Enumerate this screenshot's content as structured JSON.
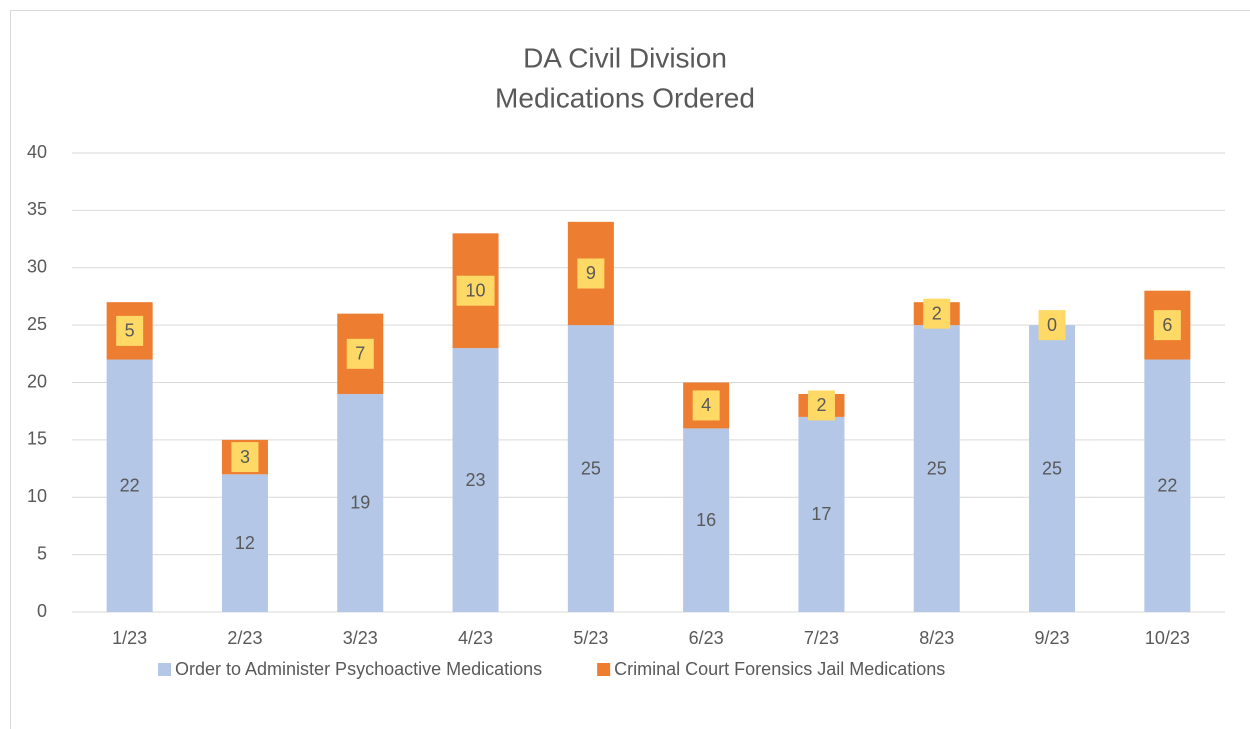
{
  "chart_data": {
    "type": "bar",
    "stacked": true,
    "title": "DA Civil Division",
    "subtitle": "Medications Ordered",
    "categories": [
      "1/23",
      "2/23",
      "3/23",
      "4/23",
      "5/23",
      "6/23",
      "7/23",
      "8/23",
      "9/23",
      "10/23"
    ],
    "series": [
      {
        "name": "Order to Administer Psychoactive Medications",
        "color": "#b4c7e7",
        "values": [
          22,
          12,
          19,
          23,
          25,
          16,
          17,
          25,
          25,
          22
        ]
      },
      {
        "name": "Criminal Court Forensics Jail Medications",
        "color": "#ed7d31",
        "label_box": "#ffd966",
        "values": [
          5,
          3,
          7,
          10,
          9,
          4,
          2,
          2,
          0,
          6
        ]
      }
    ],
    "ylim": [
      0,
      40
    ],
    "yticks": [
      0,
      5,
      10,
      15,
      20,
      25,
      30,
      35,
      40
    ],
    "grid": true,
    "legend": "bottom"
  }
}
